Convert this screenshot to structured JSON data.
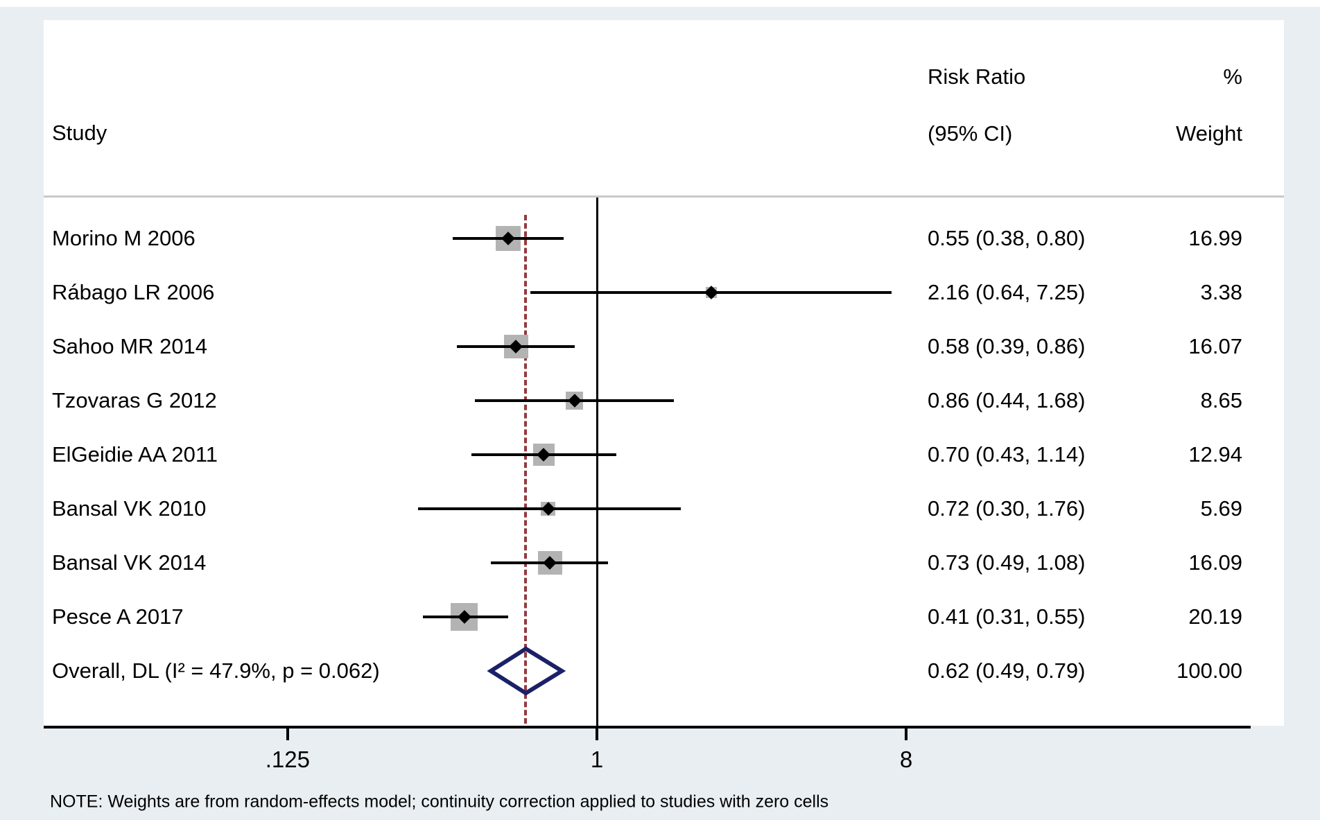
{
  "figure": {
    "header": {
      "study": "Study",
      "risk_ratio_line1": "Risk Ratio",
      "risk_ratio_line2": "(95% CI)",
      "percent": "%",
      "weight": "Weight"
    },
    "note": "NOTE: Weights are from random-effects model; continuity correction applied to studies with zero cells"
  },
  "colors": {
    "background": "#e8eef2",
    "panel": "#ffffff",
    "separator": "#c7c9cb",
    "weight_square": "#b3b3b3",
    "ci_line": "#000000",
    "null_line": "#000000",
    "overall_dashed_line": "#943a3e",
    "overall_diamond": "#1b2069"
  },
  "chart_data": {
    "type": "forest",
    "title": "",
    "xlabel": "",
    "x_scale": "log",
    "x_ticks": [
      {
        "value": 0.125,
        "label": ".125"
      },
      {
        "value": 1,
        "label": "1"
      },
      {
        "value": 8,
        "label": "8"
      }
    ],
    "null_line_value": 1,
    "overall_line_value": 0.62,
    "columns": [
      "Study",
      "Risk Ratio (95% CI)",
      "% Weight"
    ],
    "studies": [
      {
        "label": "Morino M 2006",
        "rr": 0.55,
        "lo": 0.38,
        "hi": 0.8,
        "rr_text": "0.55 (0.38, 0.80)",
        "weight": 16.99,
        "weight_text": "16.99"
      },
      {
        "label": "Rábago LR 2006",
        "rr": 2.16,
        "lo": 0.64,
        "hi": 7.25,
        "rr_text": "2.16 (0.64, 7.25)",
        "weight": 3.38,
        "weight_text": "3.38"
      },
      {
        "label": "Sahoo MR 2014",
        "rr": 0.58,
        "lo": 0.39,
        "hi": 0.86,
        "rr_text": "0.58 (0.39, 0.86)",
        "weight": 16.07,
        "weight_text": "16.07"
      },
      {
        "label": "Tzovaras G 2012",
        "rr": 0.86,
        "lo": 0.44,
        "hi": 1.68,
        "rr_text": "0.86 (0.44, 1.68)",
        "weight": 8.65,
        "weight_text": "8.65"
      },
      {
        "label": "ElGeidie AA 2011",
        "rr": 0.7,
        "lo": 0.43,
        "hi": 1.14,
        "rr_text": "0.70 (0.43, 1.14)",
        "weight": 12.94,
        "weight_text": "12.94"
      },
      {
        "label": "Bansal VK 2010",
        "rr": 0.72,
        "lo": 0.3,
        "hi": 1.76,
        "rr_text": "0.72 (0.30, 1.76)",
        "weight": 5.69,
        "weight_text": "5.69"
      },
      {
        "label": "Bansal VK 2014",
        "rr": 0.73,
        "lo": 0.49,
        "hi": 1.08,
        "rr_text": "0.73 (0.49, 1.08)",
        "weight": 16.09,
        "weight_text": "16.09"
      },
      {
        "label": "Pesce A 2017",
        "rr": 0.41,
        "lo": 0.31,
        "hi": 0.55,
        "rr_text": "0.41 (0.31, 0.55)",
        "weight": 20.19,
        "weight_text": "20.19"
      }
    ],
    "overall": {
      "label": "Overall, DL (I² = 47.9%, p = 0.062)",
      "rr": 0.62,
      "lo": 0.49,
      "hi": 0.79,
      "rr_text": "0.62 (0.49, 0.79)",
      "weight_text": "100.00"
    }
  }
}
